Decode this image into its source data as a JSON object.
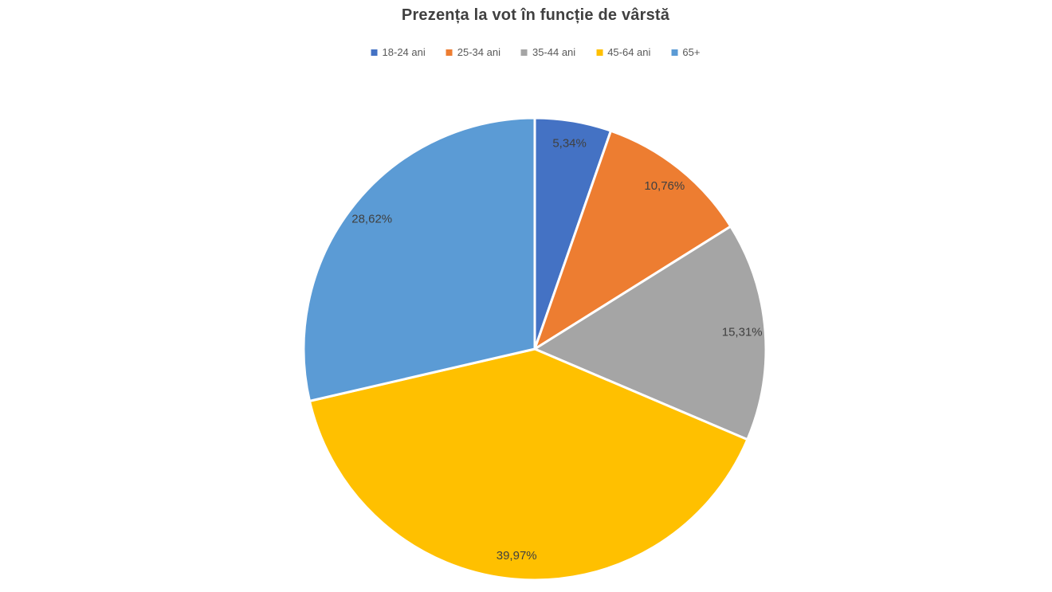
{
  "title": "Prezența la vot în funcție de vârstă",
  "chart_data": {
    "type": "pie",
    "title": "Prezența la vot în funcție de vârstă",
    "categories": [
      "18-24 ani",
      "25-34 ani",
      "35-44 ani",
      "45-64 ani",
      "65+"
    ],
    "values": [
      5.34,
      10.76,
      15.31,
      39.97,
      28.62
    ],
    "labels": [
      "5,34%",
      "10,76%",
      "15,31%",
      "39,97%",
      "28,62%"
    ],
    "colors": [
      "#4472C4",
      "#ED7D31",
      "#A5A5A5",
      "#FFC000",
      "#5B9BD5"
    ],
    "slice_border_color": "#FFFFFF",
    "label_color": "#404040",
    "legend_text_color": "#595959",
    "title_color": "#404040",
    "legend_position": "top",
    "start_angle_deg": 0,
    "direction": "clockwise",
    "values_total": 100
  }
}
